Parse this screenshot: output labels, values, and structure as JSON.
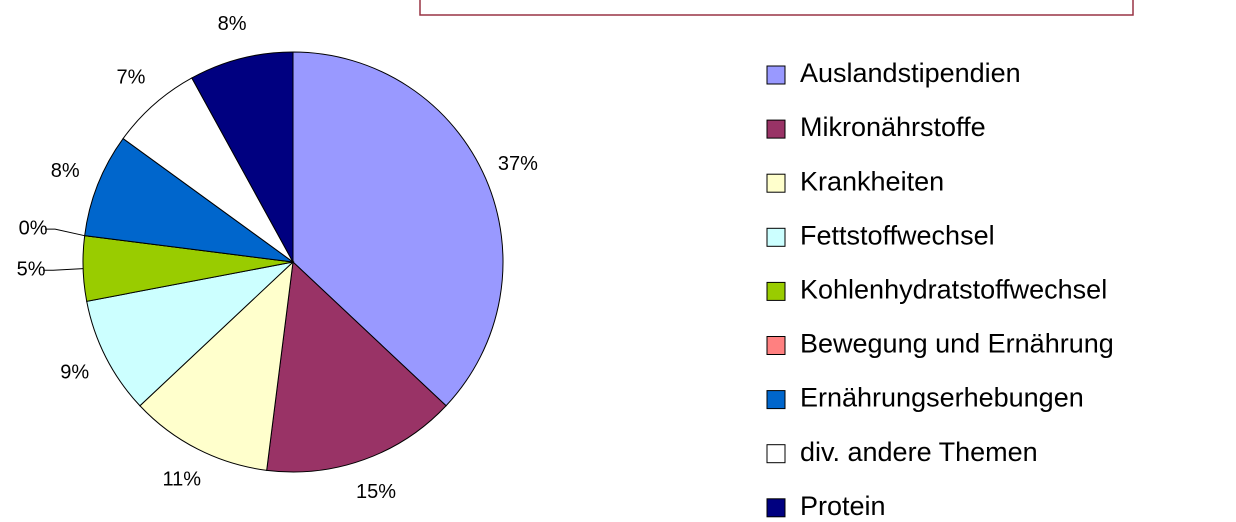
{
  "chart_data": {
    "type": "pie",
    "categories": [
      "Auslandstipendien",
      "Mikronährstoffe",
      "Krankheiten",
      "Fettstoffwechsel",
      "Kohlenhydratstoffwechsel",
      "Bewegung und Ernährung",
      "Ernährungserhebungen",
      "div. andere Themen",
      "Protein"
    ],
    "values": [
      37,
      15,
      11,
      9,
      5,
      0,
      8,
      7,
      8
    ],
    "value_labels": [
      "37%",
      "15%",
      "11%",
      "9%",
      "5%",
      "0%",
      "8%",
      "7%",
      "8%"
    ],
    "colors": [
      "#9999ff",
      "#993366",
      "#ffffcc",
      "#ccffff",
      "#99cc00",
      "#ff8080",
      "#0066cc",
      "#ffffff",
      "#000080"
    ]
  }
}
